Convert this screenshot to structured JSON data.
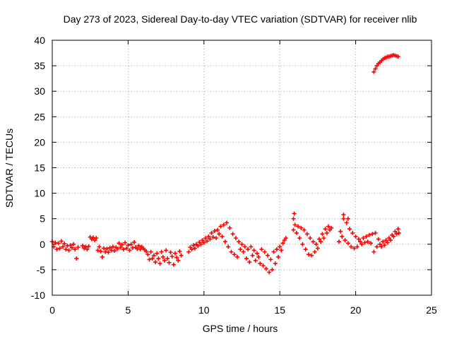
{
  "chart_data": {
    "type": "scatter",
    "title": "Day 273 of 2023, Sidereal Day-to-day VTEC variation (SDTVAR) for receiver nlib",
    "xlabel": "GPS time / hours",
    "ylabel": "SDTVAR / TECUs",
    "xlim": [
      0,
      25
    ],
    "ylim": [
      -10,
      40
    ],
    "xticks": [
      "0",
      "5",
      "10",
      "15",
      "20",
      "25"
    ],
    "yticks": [
      "-10",
      "-5",
      "0",
      "5",
      "10",
      "15",
      "20",
      "25",
      "30",
      "35",
      "40"
    ],
    "grid": true,
    "marker": "plus",
    "series_color": "#ff0000",
    "series": [
      {
        "name": "SDTVAR",
        "points": [
          [
            0.0,
            0.5
          ],
          [
            0.1,
            -0.5
          ],
          [
            0.2,
            0.3
          ],
          [
            0.3,
            -1.0
          ],
          [
            0.4,
            0.2
          ],
          [
            0.5,
            -0.8
          ],
          [
            0.6,
            0.6
          ],
          [
            0.7,
            -0.5
          ],
          [
            0.8,
            0.1
          ],
          [
            0.9,
            -1.0
          ],
          [
            1.0,
            -0.3
          ],
          [
            1.1,
            -1.2
          ],
          [
            1.2,
            -0.2
          ],
          [
            1.3,
            -0.7
          ],
          [
            1.4,
            0.0
          ],
          [
            1.5,
            -1.0
          ],
          [
            1.6,
            -2.8
          ],
          [
            1.7,
            -0.6
          ],
          [
            2.0,
            -0.3
          ],
          [
            2.1,
            -0.8
          ],
          [
            2.2,
            -0.5
          ],
          [
            2.3,
            -1.0
          ],
          [
            2.4,
            -0.4
          ],
          [
            2.5,
            1.4
          ],
          [
            2.6,
            1.0
          ],
          [
            2.7,
            1.3
          ],
          [
            2.8,
            0.8
          ],
          [
            2.9,
            1.2
          ],
          [
            3.0,
            -1.2
          ],
          [
            3.1,
            -0.5
          ],
          [
            3.2,
            -1.4
          ],
          [
            3.3,
            -2.5
          ],
          [
            3.4,
            -0.8
          ],
          [
            3.5,
            -1.5
          ],
          [
            3.6,
            -0.9
          ],
          [
            3.7,
            -1.6
          ],
          [
            3.8,
            -0.7
          ],
          [
            3.9,
            -1.2
          ],
          [
            4.0,
            -0.5
          ],
          [
            4.1,
            -1.3
          ],
          [
            4.2,
            -0.6
          ],
          [
            4.3,
            -0.9
          ],
          [
            4.4,
            0.2
          ],
          [
            4.5,
            -0.6
          ],
          [
            4.6,
            -0.1
          ],
          [
            4.7,
            -1.0
          ],
          [
            4.8,
            0.3
          ],
          [
            4.9,
            -0.8
          ],
          [
            5.0,
            -0.2
          ],
          [
            5.1,
            -1.2
          ],
          [
            5.2,
            0.0
          ],
          [
            5.3,
            -0.7
          ],
          [
            5.4,
            0.4
          ],
          [
            5.5,
            -0.6
          ],
          [
            5.6,
            -0.9
          ],
          [
            5.7,
            -0.3
          ],
          [
            5.8,
            -1.0
          ],
          [
            5.9,
            -0.5
          ],
          [
            6.0,
            -0.8
          ],
          [
            6.1,
            -1.1
          ],
          [
            6.2,
            -1.4
          ],
          [
            6.3,
            -2.0
          ],
          [
            6.4,
            -3.0
          ],
          [
            6.5,
            -1.5
          ],
          [
            6.6,
            -2.8
          ],
          [
            6.7,
            -2.2
          ],
          [
            6.8,
            -3.5
          ],
          [
            6.9,
            -1.8
          ],
          [
            7.0,
            -2.8
          ],
          [
            7.1,
            -3.8
          ],
          [
            7.2,
            -1.5
          ],
          [
            7.3,
            -2.5
          ],
          [
            7.4,
            -3.2
          ],
          [
            7.5,
            -1.2
          ],
          [
            7.6,
            -2.8
          ],
          [
            7.7,
            -3.6
          ],
          [
            7.8,
            -1.6
          ],
          [
            7.9,
            -2.4
          ],
          [
            8.0,
            -4.0
          ],
          [
            8.1,
            -1.8
          ],
          [
            8.2,
            -2.6
          ],
          [
            8.3,
            -3.2
          ],
          [
            8.4,
            -1.4
          ],
          [
            8.5,
            -2.2
          ],
          [
            9.0,
            -1.5
          ],
          [
            9.1,
            -0.6
          ],
          [
            9.2,
            -1.0
          ],
          [
            9.3,
            -0.2
          ],
          [
            9.4,
            -0.8
          ],
          [
            9.5,
            0.0
          ],
          [
            9.6,
            -0.3
          ],
          [
            9.7,
            0.4
          ],
          [
            9.8,
            0.0
          ],
          [
            9.9,
            0.8
          ],
          [
            10.0,
            0.3
          ],
          [
            10.1,
            1.2
          ],
          [
            10.2,
            0.6
          ],
          [
            10.3,
            1.5
          ],
          [
            10.4,
            1.0
          ],
          [
            10.5,
            2.2
          ],
          [
            10.6,
            1.4
          ],
          [
            10.7,
            2.6
          ],
          [
            10.8,
            1.2
          ],
          [
            10.9,
            2.8
          ],
          [
            11.0,
            2.0
          ],
          [
            11.1,
            3.5
          ],
          [
            11.2,
            1.5
          ],
          [
            11.3,
            3.8
          ],
          [
            11.4,
            0.5
          ],
          [
            11.5,
            4.2
          ],
          [
            11.6,
            -0.5
          ],
          [
            11.7,
            3.2
          ],
          [
            11.8,
            -1.5
          ],
          [
            11.9,
            2.0
          ],
          [
            12.0,
            -2.0
          ],
          [
            12.1,
            1.2
          ],
          [
            12.2,
            -2.5
          ],
          [
            12.3,
            0.5
          ],
          [
            12.4,
            -1.0
          ],
          [
            12.5,
            0.0
          ],
          [
            12.6,
            -1.5
          ],
          [
            12.7,
            -0.5
          ],
          [
            12.8,
            -2.8
          ],
          [
            12.9,
            -1.0
          ],
          [
            13.0,
            -3.5
          ],
          [
            13.1,
            -0.5
          ],
          [
            13.2,
            -2.2
          ],
          [
            13.3,
            -1.2
          ],
          [
            13.4,
            -3.2
          ],
          [
            13.5,
            -1.8
          ],
          [
            13.6,
            -2.5
          ],
          [
            13.7,
            -3.8
          ],
          [
            13.8,
            -1.0
          ],
          [
            13.9,
            -4.2
          ],
          [
            14.0,
            -1.5
          ],
          [
            14.1,
            -4.8
          ],
          [
            14.2,
            -2.2
          ],
          [
            14.3,
            -5.5
          ],
          [
            14.4,
            -3.0
          ],
          [
            14.5,
            -5.0
          ],
          [
            14.6,
            -1.5
          ],
          [
            14.7,
            -3.8
          ],
          [
            14.8,
            -1.0
          ],
          [
            14.9,
            -2.5
          ],
          [
            15.0,
            -0.5
          ],
          [
            15.1,
            -1.2
          ],
          [
            15.2,
            0.2
          ],
          [
            15.3,
            0.8
          ],
          [
            15.4,
            1.2
          ],
          [
            15.9,
            2.8
          ],
          [
            16.0,
            3.8
          ],
          [
            16.1,
            2.2
          ],
          [
            16.2,
            3.5
          ],
          [
            16.3,
            1.2
          ],
          [
            16.4,
            3.2
          ],
          [
            16.5,
            0.0
          ],
          [
            16.6,
            2.8
          ],
          [
            16.7,
            -1.0
          ],
          [
            16.8,
            2.0
          ],
          [
            16.9,
            -2.0
          ],
          [
            17.0,
            1.2
          ],
          [
            17.1,
            -2.2
          ],
          [
            17.2,
            0.5
          ],
          [
            17.3,
            -1.5
          ],
          [
            17.4,
            0.0
          ],
          [
            17.5,
            -0.8
          ],
          [
            17.6,
            1.0
          ],
          [
            17.7,
            0.5
          ],
          [
            17.8,
            2.0
          ],
          [
            17.9,
            1.2
          ],
          [
            18.0,
            3.0
          ],
          [
            18.1,
            2.2
          ],
          [
            18.2,
            3.5
          ],
          [
            18.3,
            2.8
          ],
          [
            18.4,
            3.2
          ],
          [
            18.9,
            0.5
          ],
          [
            19.0,
            2.5
          ],
          [
            19.1,
            1.5
          ],
          [
            19.2,
            5.0
          ],
          [
            19.3,
            0.8
          ],
          [
            19.4,
            4.2
          ],
          [
            19.5,
            0.2
          ],
          [
            19.6,
            3.0
          ],
          [
            19.7,
            -0.5
          ],
          [
            19.8,
            2.2
          ],
          [
            19.9,
            -0.8
          ],
          [
            20.0,
            1.5
          ],
          [
            20.1,
            -0.5
          ],
          [
            20.2,
            1.0
          ],
          [
            20.3,
            0.5
          ],
          [
            20.4,
            0.0
          ],
          [
            20.5,
            1.2
          ],
          [
            20.6,
            0.3
          ],
          [
            20.7,
            1.5
          ],
          [
            20.8,
            0.5
          ],
          [
            20.9,
            1.8
          ],
          [
            21.0,
            0.2
          ],
          [
            21.1,
            2.0
          ],
          [
            21.2,
            -1.5
          ],
          [
            21.3,
            2.2
          ],
          [
            21.4,
            -0.5
          ],
          [
            21.5,
            1.0
          ],
          [
            21.6,
            0.0
          ],
          [
            21.7,
            -0.5
          ],
          [
            21.8,
            0.5
          ],
          [
            21.9,
            -0.2
          ],
          [
            22.0,
            0.8
          ],
          [
            22.1,
            0.3
          ],
          [
            22.2,
            1.2
          ],
          [
            22.3,
            0.8
          ],
          [
            22.4,
            1.8
          ],
          [
            22.5,
            1.5
          ],
          [
            22.6,
            2.5
          ],
          [
            22.7,
            2.0
          ],
          [
            22.8,
            3.0
          ],
          [
            22.85,
            2.2
          ],
          [
            21.2,
            33.8
          ],
          [
            21.3,
            34.4
          ],
          [
            21.4,
            35.0
          ],
          [
            21.5,
            35.4
          ],
          [
            21.6,
            35.7
          ],
          [
            21.7,
            36.0
          ],
          [
            21.8,
            36.3
          ],
          [
            21.9,
            36.5
          ],
          [
            22.0,
            36.6
          ],
          [
            22.1,
            36.8
          ],
          [
            22.2,
            36.8
          ],
          [
            22.3,
            36.9
          ],
          [
            22.4,
            37.0
          ],
          [
            22.5,
            37.1
          ],
          [
            22.6,
            37.0
          ],
          [
            22.7,
            36.9
          ],
          [
            22.8,
            36.8
          ],
          [
            15.95,
            6.0
          ],
          [
            15.9,
            5.0
          ],
          [
            19.2,
            5.8
          ],
          [
            19.5,
            5.0
          ]
        ]
      }
    ]
  }
}
